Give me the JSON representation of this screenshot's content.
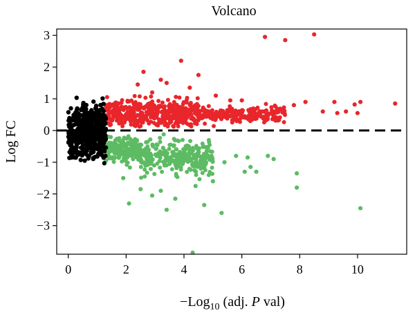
{
  "chart_data": {
    "type": "scatter",
    "title": "Volcano",
    "xlabel": {
      "prefix": "−Log",
      "sub": "10",
      "middle": " (adj. ",
      "italic": "P",
      "suffix": " val)"
    },
    "ylabel": "Log FC",
    "xlim": [
      -0.4,
      11.7
    ],
    "ylim": [
      -3.9,
      3.2
    ],
    "xticks": [
      "0",
      "2",
      "4",
      "6",
      "8",
      "10"
    ],
    "xtick_values": [
      0,
      2,
      4,
      6,
      8,
      10
    ],
    "yticks": [
      "3",
      "2",
      "1",
      "0",
      "−1",
      "−2",
      "−3"
    ],
    "ytick_values": [
      3,
      2,
      1,
      0,
      -1,
      -2,
      -3
    ],
    "reference_line": {
      "y": 0,
      "style": "dashed"
    },
    "series": [
      {
        "color": "#e8262b",
        "regions": [
          {
            "x_from": 1.3,
            "x_to": 2.5,
            "y_center": 0.55,
            "y_spread": 0.45,
            "density": 180
          },
          {
            "x_from": 2.5,
            "x_to": 4.5,
            "y_center": 0.55,
            "y_spread": 0.4,
            "density": 260
          },
          {
            "x_from": 4.5,
            "x_to": 7.5,
            "y_center": 0.5,
            "y_spread": 0.25,
            "density": 200
          }
        ],
        "points": [
          [
            6.8,
            2.95
          ],
          [
            7.5,
            2.85
          ],
          [
            8.5,
            3.03
          ],
          [
            3.9,
            2.2
          ],
          [
            4.5,
            1.75
          ],
          [
            2.6,
            1.85
          ],
          [
            9.2,
            0.9
          ],
          [
            9.9,
            0.82
          ],
          [
            10.0,
            0.55
          ],
          [
            10.1,
            0.9
          ],
          [
            11.3,
            0.85
          ],
          [
            8.8,
            0.6
          ],
          [
            9.3,
            0.55
          ],
          [
            9.6,
            0.6
          ],
          [
            8.2,
            0.9
          ],
          [
            7.8,
            0.8
          ],
          [
            3.4,
            1.5
          ],
          [
            3.2,
            1.6
          ],
          [
            2.9,
            1.2
          ],
          [
            5.1,
            1.1
          ],
          [
            6.0,
            0.95
          ],
          [
            2.4,
            1.45
          ],
          [
            4.2,
            1.35
          ],
          [
            5.6,
            0.95
          ]
        ]
      },
      {
        "color": "#5dbb63",
        "regions": [
          {
            "x_from": 1.3,
            "x_to": 2.5,
            "y_center": -0.6,
            "y_spread": 0.4,
            "density": 180
          },
          {
            "x_from": 2.5,
            "x_to": 5.0,
            "y_center": -0.85,
            "y_spread": 0.5,
            "density": 300
          }
        ],
        "points": [
          [
            4.3,
            -3.85
          ],
          [
            10.1,
            -2.45
          ],
          [
            5.3,
            -2.6
          ],
          [
            4.7,
            -2.35
          ],
          [
            2.1,
            -2.3
          ],
          [
            3.4,
            -2.5
          ],
          [
            7.9,
            -1.8
          ],
          [
            7.9,
            -1.35
          ],
          [
            6.5,
            -1.3
          ],
          [
            6.1,
            -1.3
          ],
          [
            7.1,
            -0.9
          ],
          [
            6.9,
            -0.8
          ],
          [
            5.8,
            -0.8
          ],
          [
            6.2,
            -0.85
          ],
          [
            5.4,
            -1.0
          ],
          [
            6.3,
            -1.15
          ],
          [
            2.9,
            -2.05
          ],
          [
            3.7,
            -2.15
          ],
          [
            3.2,
            -1.9
          ],
          [
            4.4,
            -1.75
          ],
          [
            2.5,
            -1.85
          ],
          [
            1.9,
            -1.5
          ],
          [
            5.0,
            -1.6
          ]
        ]
      },
      {
        "color": "#000000",
        "regions": [
          {
            "x_from": 0.0,
            "x_to": 1.3,
            "y_center": 0.0,
            "y_spread": 1.0,
            "density": 500
          }
        ],
        "points": []
      }
    ]
  }
}
